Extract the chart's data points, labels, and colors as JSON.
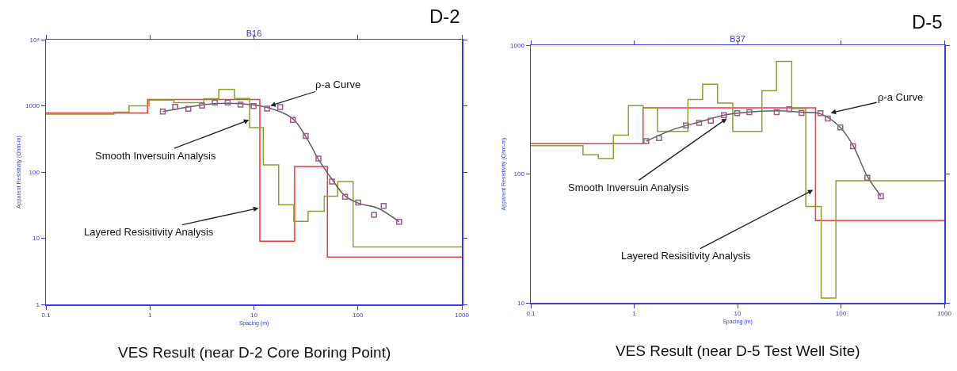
{
  "chart_data": [
    {
      "type": "line",
      "title": "B16",
      "xlabel": "Spacing (m)",
      "ylabel": "Apparent Resistivity (Ohm-m)",
      "log": "xy",
      "xlim": [
        0.1,
        1000
      ],
      "xticks": [
        0.1,
        1,
        10,
        100,
        1000
      ],
      "ylim": [
        1,
        10000
      ],
      "yticks": [
        1,
        10,
        100,
        1000,
        {
          "value": 10000,
          "label": "10⁴"
        }
      ],
      "series": [
        {
          "type": "step",
          "color": "#f03c3c",
          "x": [
            0.1,
            0.95,
            11.4,
            24.6,
            50.9,
            1000
          ],
          "values": [
            780,
            1250,
            9,
            121,
            5.2,
            5.2
          ]
        },
        {
          "type": "step",
          "color": "#8ea030",
          "x": [
            0.1,
            0.45,
            0.63,
            0.98,
            1.7,
            3.3,
            4.6,
            6.5,
            9.1,
            12.3,
            17.3,
            24.2,
            33.2,
            47.5,
            64,
            90,
            1000
          ],
          "values": [
            750,
            800,
            1000,
            1220,
            1120,
            1280,
            1770,
            1290,
            470,
            128,
            32,
            18,
            25.5,
            43,
            72,
            7.4,
            7.4
          ]
        },
        {
          "color": "#606060",
          "x": [
            1.33,
            4.05,
            7.43,
            13.6,
            23.4,
            32.8,
            41.8,
            56.3,
            75.3,
            103,
            155,
            249
          ],
          "values": [
            818,
            1076,
            1076,
            938,
            647,
            309,
            155,
            78,
            43.5,
            33.5,
            28.5,
            17.7
          ]
        },
        {
          "type": "scatter",
          "marker": "square",
          "color": "#a05a8c",
          "x": [
            1.33,
            1.75,
            2.34,
            3.17,
            4.21,
            5.6,
            7.43,
            9.93,
            13.4,
            17.9,
            23.7,
            31.5,
            41.8,
            56.3,
            75.3,
            100.7,
            143,
            177,
            249
          ],
          "values": [
            818,
            968,
            900,
            1010,
            1123,
            1123,
            1043,
            990,
            909,
            958,
            614,
            351,
            160,
            71.6,
            42.2,
            34.5,
            22.6,
            30.7,
            17.7
          ]
        }
      ],
      "annotations": [
        "D-2",
        "VES Result (near D-2 Core Boring Point)",
        {
          "text": "ρ-a Curve",
          "x": 14.4,
          "y": 1000
        },
        {
          "text": "Smooth Inversuin Analysis",
          "x": 8.97,
          "y": 614
        },
        {
          "text": "Layered Resisitivity Analysis",
          "x": 11.1,
          "y": 28.5
        }
      ]
    },
    {
      "type": "line",
      "title": "B37",
      "xlabel": "Spacing (m)",
      "ylabel": "Apparent Resistivity (Ohm-m)",
      "log": "xy",
      "xlim": [
        0.1,
        1000
      ],
      "xticks": [
        0.1,
        1,
        10,
        100,
        1000
      ],
      "ylim": [
        10,
        1000
      ],
      "yticks": [
        10,
        100,
        1000
      ],
      "series": [
        {
          "type": "step",
          "color": "#f03c3c",
          "x": [
            0.1,
            1.22,
            56.8,
            1000
          ],
          "values": [
            172,
            327,
            43.5,
            43.5
          ]
        },
        {
          "type": "step",
          "color": "#8ea030",
          "x": [
            0.1,
            0.32,
            0.45,
            0.63,
            0.88,
            1.22,
            1.68,
            3.31,
            4.59,
            6.4,
            8.98,
            17.2,
            23.8,
            33.4,
            45.7,
            64.4,
            89.4,
            1000
          ],
          "values": [
            166,
            141,
            132,
            200,
            340,
            327,
            214,
            379,
            497,
            355,
            214,
            442,
            749,
            322,
            56,
            10.9,
            88.5,
            88.5
          ]
        },
        {
          "color": "#606060",
          "x": [
            1.31,
            2.44,
            4.25,
            7.39,
            12.4,
            23.9,
            41.5,
            63.4,
            98.7,
            131,
            180,
            244
          ],
          "values": [
            180,
            223,
            253,
            286,
            302,
            310,
            302,
            293,
            230,
            166,
            96,
            67.3
          ]
        },
        {
          "type": "scatter",
          "marker": "square",
          "color": "#a05a8c",
          "x": [
            1.31,
            1.74,
            3.17,
            4.25,
            5.51,
            7.39,
            9.9,
            13.0,
            23.9,
            31.6,
            41.5,
            63.4,
            74.6,
            98.7,
            131,
            180,
            244
          ],
          "values": [
            180,
            190,
            238,
            249,
            259,
            286,
            297,
            302,
            302,
            318,
            298,
            297,
            270,
            230,
            164,
            93.4,
            67.3
          ]
        }
      ],
      "annotations": [
        "D-5",
        "VES Result (near D-5 Test Well Site)",
        {
          "text": "ρ-a Curve",
          "x": 79.6,
          "y": 298
        },
        {
          "text": "Smooth Inversuin Analysis",
          "x": 7.88,
          "y": 270
        },
        {
          "text": "Layered Resisitivity Analysis",
          "x": 53.8,
          "y": 75.2
        }
      ]
    }
  ]
}
